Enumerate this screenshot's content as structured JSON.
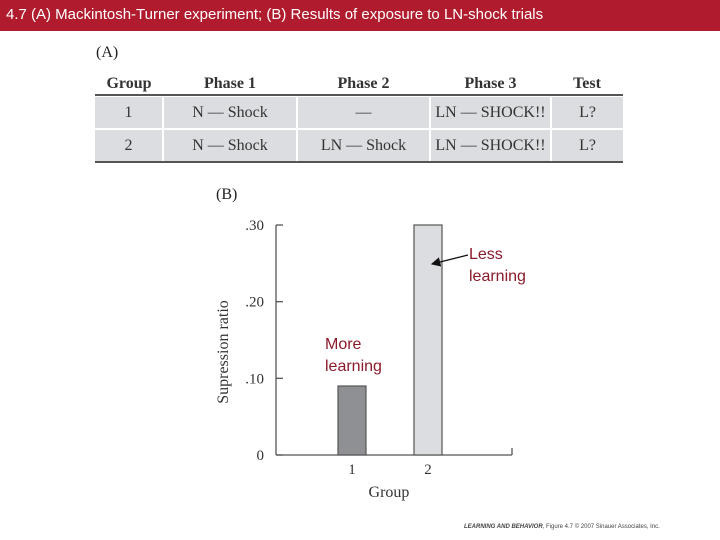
{
  "header": {
    "title": "4.7 (A) Mackintosh-Turner experiment; (B) Results of exposure to LN-shock trials"
  },
  "panel_a": {
    "label": "(A)",
    "columns": [
      "Group",
      "Phase 1",
      "Phase 2",
      "Phase 3",
      "Test"
    ],
    "rows": [
      [
        "1",
        "N — Shock",
        "—",
        "LN — SHOCK!!",
        "L?"
      ],
      [
        "2",
        "N — Shock",
        "LN — Shock",
        "LN — SHOCK!!",
        "L?"
      ]
    ]
  },
  "panel_b": {
    "label": "(B)"
  },
  "annotations": {
    "less": [
      "Less",
      "learning"
    ],
    "more": [
      "More",
      "learning"
    ]
  },
  "footer": {
    "book": "LEARNING AND BEHAVIOR",
    "rest": ", Figure 4.7  © 2007 Sinauer Associates, Inc."
  },
  "colors": {
    "title_bar": "#b01c2e",
    "annotation": "#8b1a2a",
    "bar_group1": "#8e9094",
    "bar_group2": "#dcdde0"
  },
  "chart_data": {
    "type": "bar",
    "categories": [
      "1",
      "2"
    ],
    "values": [
      0.09,
      0.3
    ],
    "ytick_labels": [
      "0",
      ".10",
      ".20",
      ".30"
    ],
    "yticks": [
      0,
      0.1,
      0.2,
      0.3
    ],
    "ylim": [
      0,
      0.3
    ],
    "xlabel": "Group",
    "ylabel": "Supression ratio",
    "grid": false
  }
}
